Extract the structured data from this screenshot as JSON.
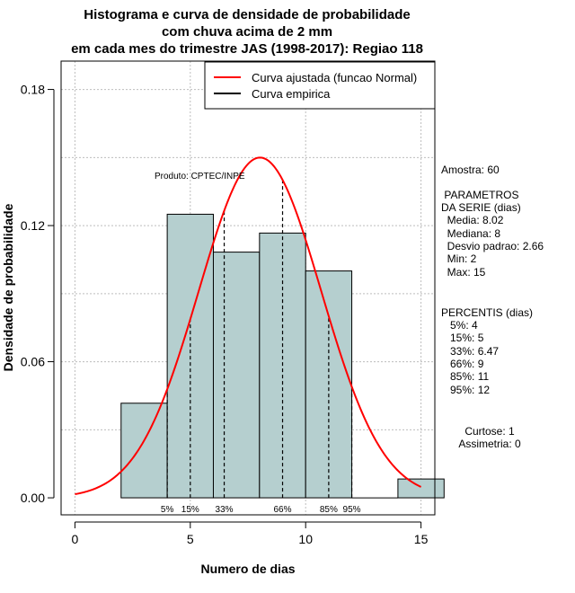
{
  "chart_data": {
    "type": "bar",
    "title_lines": [
      "Histograma e curva de densidade de probabilidade",
      "com chuva acima de 2 mm",
      "em cada mes do trimestre JAS (1998-2017): Regiao 118"
    ],
    "xlabel": "Numero de dias",
    "ylabel": "Densidade de probabilidade",
    "xlim": [
      -0.6,
      15.6
    ],
    "ylim": [
      -0.0075,
      0.1925
    ],
    "x_ticks": [
      0,
      5,
      10,
      15
    ],
    "x_tick_labels": [
      "0",
      "5",
      "10",
      "15"
    ],
    "y_ticks": [
      0.0,
      0.06,
      0.12,
      0.18
    ],
    "y_tick_labels": [
      "0.00",
      "0.06",
      "0.12",
      "0.18"
    ],
    "grid": true,
    "bins": [
      {
        "start": 2,
        "end": 4,
        "density": 0.0417
      },
      {
        "start": 4,
        "end": 6,
        "density": 0.125
      },
      {
        "start": 6,
        "end": 8,
        "density": 0.1083
      },
      {
        "start": 8,
        "end": 10,
        "density": 0.1167
      },
      {
        "start": 10,
        "end": 12,
        "density": 0.1
      },
      {
        "start": 12,
        "end": 14,
        "density": 0.0
      },
      {
        "start": 14,
        "end": 16,
        "density": 0.0083
      }
    ],
    "bar_color": "#b5cfcf",
    "normal_curve": {
      "mean": 8.02,
      "sd": 2.66,
      "x_from": 0,
      "x_to": 15,
      "color": "#ff0000"
    },
    "percentile_markers": [
      {
        "label": "5%",
        "x": 4
      },
      {
        "label": "15%",
        "x": 5
      },
      {
        "label": "33%",
        "x": 6.47
      },
      {
        "label": "66%",
        "x": 9
      },
      {
        "label": "85%",
        "x": 11
      },
      {
        "label": "95%",
        "x": 12
      }
    ],
    "legend": {
      "position": "top-right",
      "entries": [
        {
          "label": "Curva ajustada (funcao Normal)",
          "color": "#ff0000"
        },
        {
          "label": "Curva empirica",
          "color": "#000000"
        }
      ]
    },
    "product_label": "Produto: CPTEC/INPE",
    "side_panel": [
      "Amostra: 60",
      " PARAMETROS",
      "DA SERIE (dias)",
      "  Media: 8.02",
      "  Mediana: 8",
      "  Desvio padrao: 2.66",
      "  Min: 2",
      "  Max: 15",
      "PERCENTIS (dias)",
      "   5%: 4",
      "   15%: 5",
      "   33%: 6.47",
      "   66%: 9",
      "   85%: 11",
      "   95%: 12",
      "Curtose: 1",
      "Assimetria: 0"
    ]
  }
}
